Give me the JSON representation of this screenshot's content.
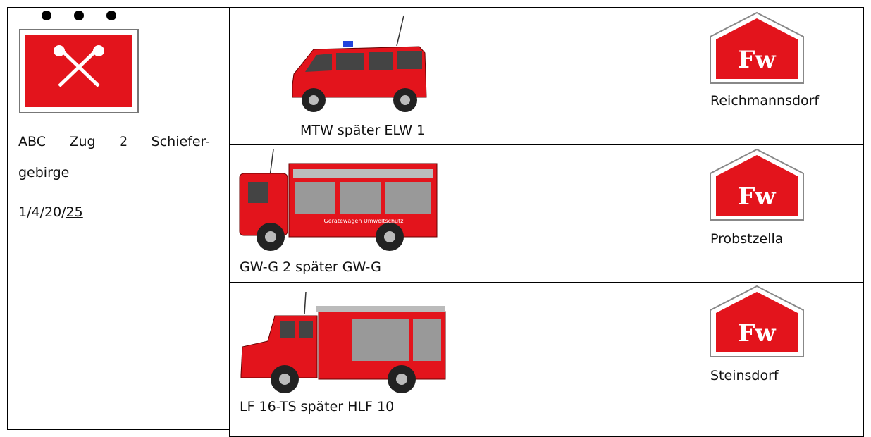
{
  "unit": {
    "title_line1": "ABC Zug 2 Schiefer-",
    "title_line2": "gebirge",
    "code_prefix": "1/4/20/",
    "code_underlined": "25"
  },
  "rows": [
    {
      "vehicle": "MTW später ELW 1",
      "station_icon": "Fw",
      "station": "Reichmannsdorf"
    },
    {
      "vehicle": "GW-G 2 später GW-G",
      "vehicle_lettering": "Gerätewagen Umweltschutz",
      "station_icon": "Fw",
      "station": "Probstzella"
    },
    {
      "vehicle": "LF 16-TS später HLF 10",
      "station_icon": "Fw",
      "station": "Steinsdorf"
    }
  ]
}
